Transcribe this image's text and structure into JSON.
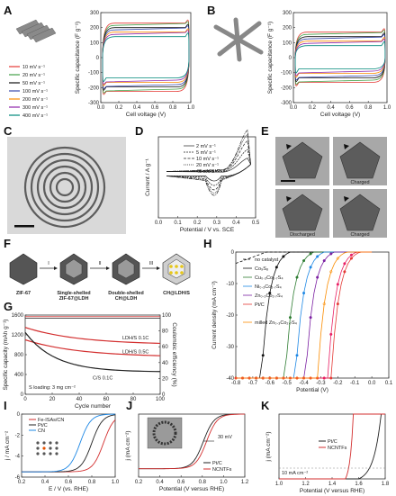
{
  "colors": {
    "A": [
      "#e53935",
      "#43a047",
      "#111111",
      "#3949ab",
      "#fb8c00",
      "#8e24aa",
      "#00897b"
    ],
    "H": [
      "#111111",
      "#111111",
      "#2e7d32",
      "#1e88e5",
      "#7b1fa2",
      "#e53935",
      "#e91e63",
      "#fb8c00"
    ]
  },
  "panels": {
    "A": {
      "letter": "A"
    },
    "B": {
      "letter": "B"
    },
    "C": {
      "letter": "C"
    },
    "D": {
      "letter": "D"
    },
    "E": {
      "letter": "E",
      "labels": [
        "Charged",
        "Discharged",
        "Charged"
      ]
    },
    "F": {
      "letter": "F",
      "steps": [
        "ZIF-67",
        "Single-shelled\nZIF-67@LDH",
        "Double-shelled\nCH@LDH",
        "CH@LDH/S"
      ],
      "arrows": [
        "I",
        "II",
        "III"
      ]
    },
    "G": {
      "letter": "G"
    },
    "H": {
      "letter": "H"
    },
    "I": {
      "letter": "I"
    },
    "J": {
      "letter": "J"
    },
    "K": {
      "letter": "K"
    }
  },
  "chart_data": [
    {
      "panel": "A",
      "type": "line",
      "xlabel": "Cell voltage (V)",
      "ylabel": "Specific capacitance (F g⁻¹)",
      "xlim": [
        0.0,
        1.0
      ],
      "ylim": [
        -300,
        300
      ],
      "xticks": [
        "0.0",
        "0.2",
        "0.4",
        "0.6",
        "0.8",
        "1.0"
      ],
      "yticks": [
        "-300",
        "-200",
        "-100",
        "0",
        "100",
        "200",
        "300"
      ],
      "series": [
        {
          "name": "10 mV s⁻¹",
          "top": 230,
          "bottom": -225
        },
        {
          "name": "20 mV s⁻¹",
          "top": 215,
          "bottom": -210
        },
        {
          "name": "50 mV s⁻¹",
          "top": 200,
          "bottom": -195
        },
        {
          "name": "100 mV s⁻¹",
          "top": 185,
          "bottom": -180
        },
        {
          "name": "200 mV s⁻¹",
          "top": 170,
          "bottom": -165
        },
        {
          "name": "300 mV s⁻¹",
          "top": 155,
          "bottom": -150
        },
        {
          "name": "400 mV s⁻¹",
          "top": 140,
          "bottom": -135
        }
      ]
    },
    {
      "panel": "B",
      "type": "line",
      "xlabel": "Cell voltage (V)",
      "ylabel": "Specific capacitance (F g⁻¹)",
      "xlim": [
        0.0,
        1.0
      ],
      "ylim": [
        -300,
        300
      ],
      "xticks": [
        "0.0",
        "0.2",
        "0.4",
        "0.6",
        "0.8",
        "1.0"
      ],
      "yticks": [
        "-300",
        "-200",
        "-100",
        "0",
        "100",
        "200",
        "300"
      ],
      "series": [
        {
          "top": 170,
          "bottom": -165
        },
        {
          "top": 155,
          "bottom": -150
        },
        {
          "top": 140,
          "bottom": -135
        },
        {
          "top": 125,
          "bottom": -120
        },
        {
          "top": 110,
          "bottom": -105
        },
        {
          "top": 95,
          "bottom": -90
        },
        {
          "top": 80,
          "bottom": -75
        }
      ]
    },
    {
      "panel": "D",
      "type": "line",
      "xlabel": "Potential / V vs. SCE",
      "ylabel": "Current / A g⁻¹",
      "xlim": [
        -0.05,
        0.55
      ],
      "xticks": [
        "0.0",
        "0.1",
        "0.2",
        "0.3",
        "0.4",
        "0.5"
      ],
      "series": [
        {
          "name": "2 mV s⁻¹",
          "amp": 0.35
        },
        {
          "name": "5 mV s⁻¹",
          "amp": 0.55
        },
        {
          "name": "10 mV s⁻¹",
          "amp": 0.75
        },
        {
          "name": "20 mV s⁻¹",
          "amp": 0.9
        },
        {
          "name": "40 mV s⁻¹",
          "amp": 1.0
        }
      ]
    },
    {
      "panel": "G",
      "type": "line",
      "xlabel": "Cycle number",
      "ylabel": "Specific capacity (mAh g⁻¹)",
      "y2label": "Coulombic efficiency (%)",
      "xlim": [
        0,
        100
      ],
      "ylim": [
        0,
        1600
      ],
      "y2lim": [
        0,
        100
      ],
      "xticks": [
        "0",
        "20",
        "40",
        "60",
        "80",
        "100"
      ],
      "yticks": [
        "0",
        "400",
        "800",
        "1200",
        "1600"
      ],
      "y2ticks": [
        "0",
        "20",
        "40",
        "60",
        "80",
        "100"
      ],
      "annotation": "S loading: 3 mg cm⁻²",
      "series": [
        {
          "name": "LDH/S 0.1C",
          "start": 1350,
          "end": 1000
        },
        {
          "name": "LDH/S 0.5C",
          "start": 1100,
          "end": 750
        },
        {
          "name": "C/S 0.1C",
          "start": 1250,
          "end": 450
        }
      ]
    },
    {
      "panel": "H",
      "type": "line",
      "xlabel": "Potential (V)",
      "ylabel": "Current density (mA cm⁻²)",
      "xlim": [
        -0.8,
        0.1
      ],
      "ylim": [
        -40,
        0
      ],
      "xticks": [
        "-0.8",
        "-0.7",
        "-0.6",
        "-0.5",
        "-0.4",
        "-0.3",
        "-0.2",
        "-0.1",
        "0.0",
        "0.1"
      ],
      "yticks": [
        "-40",
        "-30",
        "-20",
        "-10",
        "0"
      ],
      "series": [
        {
          "name": "no catalyst",
          "onset": -0.62
        },
        {
          "name": "Co₉S₈",
          "onset": -0.48
        },
        {
          "name": "Cu₀.₃Co₂.₇S₄",
          "onset": -0.34
        },
        {
          "name": "Ni₀.₃Co₂.₇S₄",
          "onset": -0.28
        },
        {
          "name": "Zn₀.₃Co₂.₇S₄",
          "onset": -0.22
        },
        {
          "name": "Pt/C",
          "onset": -0.07
        },
        {
          "name": "",
          "onset": -0.09
        },
        {
          "name": "milled Zn₀.₃Co₂.₇S₄",
          "onset": -0.15
        }
      ]
    },
    {
      "panel": "I",
      "type": "line",
      "xlabel": "E / V (vs. RHE)",
      "ylabel": "j / mA cm⁻²",
      "xlim": [
        0.2,
        1.0
      ],
      "ylim": [
        -6,
        0
      ],
      "xticks": [
        "0.2",
        "0.4",
        "0.6",
        "0.8",
        "1.0"
      ],
      "yticks": [
        "-6",
        "-4",
        "-2",
        "0"
      ],
      "series": [
        {
          "name": "Fe-ISAs/CN",
          "half": 0.9
        },
        {
          "name": "Pt/C",
          "half": 0.8
        },
        {
          "name": "CN",
          "half": 0.7
        }
      ]
    },
    {
      "panel": "J",
      "type": "line",
      "xlabel": "Potential (V versus RHE)",
      "ylabel": "j (mA cm⁻²)",
      "xlim": [
        0.2,
        1.2
      ],
      "ylim": [
        -6,
        0
      ],
      "xticks": [
        "0.2",
        "0.4",
        "0.6",
        "0.8",
        "1.0",
        "1.2"
      ],
      "annotation": "30 mV",
      "series": [
        {
          "name": "Pt/C",
          "half": 0.81
        },
        {
          "name": "NCNTFs",
          "half": 0.84
        }
      ]
    },
    {
      "panel": "K",
      "type": "line",
      "xlabel": "Potential (V versus RHE)",
      "ylabel": "j (mA cm⁻²)",
      "xlim": [
        1.0,
        1.8
      ],
      "ylim": [
        0,
        60
      ],
      "xticks": [
        "1.0",
        "1.2",
        "1.4",
        "1.6",
        "1.8"
      ],
      "annotation": "10 mA cm⁻²",
      "series": [
        {
          "name": "Pt/C",
          "onset": 1.6
        },
        {
          "name": "NCNTFs",
          "onset": 1.5
        }
      ]
    }
  ]
}
